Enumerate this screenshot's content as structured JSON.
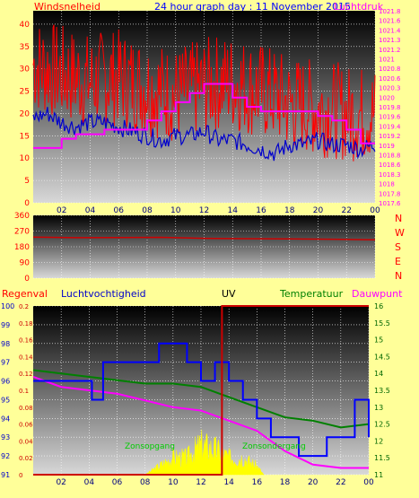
{
  "header": {
    "title": "24 hour graph day : 11 November 2015",
    "left_label": "Windsnelheid",
    "right_label": "Luchtdruk"
  },
  "direction_labels": [
    "N",
    "W",
    "S",
    "E",
    "N"
  ],
  "bottom_labels": {
    "rain": "Regenval",
    "humidity": "Luchtvochtigheid",
    "uv": "UV",
    "temperature": "Temperatuur",
    "dewpoint": "Dauwpunt"
  },
  "annotations": {
    "sunrise": "Zonsopgang",
    "sunset": "Zonsondergang"
  },
  "colors": {
    "wind": "#ff0000",
    "wind_avg": "#0000cc",
    "pressure": "#ff00ff",
    "direction": "#cc0000",
    "humidity": "#0000ff",
    "uv": "#ffff00",
    "rain": "#cc0000",
    "temperature": "#008000",
    "dewpoint": "#ff00ff",
    "title": "#0000ff",
    "background": "#ffff99"
  },
  "chart_data": [
    {
      "type": "line",
      "panel": "wind_pressure",
      "x_ticks": [
        "02",
        "04",
        "06",
        "08",
        "10",
        "12",
        "14",
        "16",
        "18",
        "20",
        "22",
        "00"
      ],
      "y_left_ticks": [
        "0",
        "5",
        "10",
        "15",
        "20",
        "25",
        "30",
        "35",
        "40"
      ],
      "y_left_range": [
        0,
        43
      ],
      "y_right_ticks": [
        "1017.6",
        "1017.8",
        "1018",
        "1018.3",
        "1018.6",
        "1018.8",
        "1019",
        "1019.2",
        "1019.4",
        "1019.6",
        "1019.8",
        "1020",
        "1020.3",
        "1020.6",
        "1020.8",
        "1021",
        "1021.2",
        "1021.3",
        "1021.4",
        "1021.6",
        "1021.8"
      ],
      "y_right_range": [
        1017.6,
        1021.8
      ],
      "series": [
        {
          "name": "wind_gust",
          "axis": "left",
          "color": "#ff0000",
          "x": [
            0,
            1,
            2,
            3,
            4,
            5,
            6,
            7,
            8,
            9,
            10,
            11,
            12,
            13,
            14,
            15,
            16,
            17,
            18,
            19,
            20,
            21,
            22,
            23,
            24
          ],
          "values": [
            31,
            30,
            29,
            28,
            27,
            28,
            28,
            27,
            26,
            25,
            24,
            25,
            26,
            27,
            27,
            26,
            25,
            24,
            22,
            22,
            21,
            21,
            20,
            20,
            20
          ]
        },
        {
          "name": "wind_avg",
          "axis": "left",
          "color": "#0000cc",
          "x": [
            0,
            1,
            2,
            3,
            4,
            5,
            6,
            7,
            8,
            9,
            10,
            11,
            12,
            13,
            14,
            15,
            16,
            17,
            18,
            19,
            20,
            21,
            22,
            23,
            24
          ],
          "values": [
            19,
            20,
            18,
            17,
            18,
            18,
            17,
            16,
            15,
            14,
            15,
            15,
            16,
            14,
            14,
            13,
            12,
            11,
            13,
            13,
            14,
            13,
            13,
            12,
            13
          ]
        },
        {
          "name": "pressure",
          "axis": "right",
          "color": "#ff00ff",
          "x": [
            0,
            1,
            2,
            3,
            4,
            5,
            6,
            7,
            8,
            9,
            10,
            11,
            12,
            13,
            14,
            15,
            16,
            17,
            18,
            19,
            20,
            21,
            22,
            23,
            24
          ],
          "values": [
            1018.8,
            1018.8,
            1019.0,
            1019.1,
            1019.1,
            1019.2,
            1019.2,
            1019.2,
            1019.4,
            1019.6,
            1019.8,
            1020.0,
            1020.2,
            1020.2,
            1019.9,
            1019.7,
            1019.6,
            1019.6,
            1019.6,
            1019.6,
            1019.5,
            1019.4,
            1019.2,
            1018.9,
            1018.9
          ]
        }
      ]
    },
    {
      "type": "line",
      "panel": "direction",
      "x_ticks": [
        "02",
        "04",
        "06",
        "08",
        "10",
        "12",
        "14",
        "16",
        "18",
        "20",
        "22",
        "00"
      ],
      "y_ticks": [
        "0",
        "90",
        "180",
        "270",
        "360"
      ],
      "y_range": [
        0,
        360
      ],
      "series": [
        {
          "name": "wind_direction",
          "color": "#cc0000",
          "x": [
            0,
            3,
            6,
            9,
            12,
            15,
            18,
            21,
            24
          ],
          "values": [
            235,
            232,
            233,
            234,
            228,
            226,
            225,
            223,
            220
          ]
        }
      ]
    },
    {
      "type": "line",
      "panel": "humidity_rain_uv_temp",
      "x_ticks": [
        "02",
        "04",
        "06",
        "08",
        "10",
        "12",
        "14",
        "16",
        "18",
        "20",
        "22",
        "00"
      ],
      "y_humidity_ticks": [
        "91",
        "92",
        "93",
        "94",
        "95",
        "96",
        "97",
        "98",
        "99",
        "100"
      ],
      "y_humidity_range": [
        91,
        100
      ],
      "y_rain_ticks": [
        "0",
        "0.02",
        "0.04",
        "0.06",
        "0.08",
        "0.1",
        "0.12",
        "0.14",
        "0.16",
        "0.18",
        "0.2"
      ],
      "y_rain_range": [
        0,
        0.2
      ],
      "y_temp_ticks": [
        "11",
        "11.5",
        "12",
        "12.5",
        "13",
        "13.5",
        "14",
        "14.5",
        "15",
        "15.5",
        "16"
      ],
      "y_temp_range": [
        11,
        16
      ],
      "series": [
        {
          "name": "humidity",
          "color": "#0000ff",
          "x": [
            0,
            4,
            4.2,
            5,
            6,
            7,
            8,
            9,
            10,
            11,
            12,
            13,
            14,
            15,
            16,
            17,
            18,
            19,
            20,
            21,
            22,
            23,
            24
          ],
          "values": [
            96,
            96,
            95,
            97,
            97,
            97,
            97,
            98,
            98,
            97,
            96,
            97,
            96,
            95,
            94,
            93,
            93,
            92,
            92,
            93,
            93,
            95,
            93
          ]
        },
        {
          "name": "rain",
          "color": "#cc0000",
          "x": [
            0,
            13.5,
            13.5,
            24
          ],
          "values": [
            0,
            0,
            0.2,
            0.2
          ]
        },
        {
          "name": "uv",
          "color": "#ffff00",
          "x": [
            8,
            9,
            10,
            11,
            12,
            13,
            14,
            15,
            16,
            16.5
          ],
          "values": [
            0,
            0.01,
            0.02,
            0.02,
            0.035,
            0.03,
            0.02,
            0.02,
            0.01,
            0
          ]
        },
        {
          "name": "temperature",
          "color": "#008000",
          "x": [
            0,
            2,
            4,
            6,
            8,
            10,
            12,
            14,
            16,
            18,
            20,
            22,
            24
          ],
          "values": [
            14.1,
            14.0,
            13.9,
            13.8,
            13.7,
            13.7,
            13.6,
            13.3,
            13.0,
            12.7,
            12.6,
            12.4,
            12.5
          ]
        },
        {
          "name": "dewpoint",
          "color": "#ff00ff",
          "x": [
            0,
            2,
            4,
            6,
            8,
            10,
            12,
            14,
            16,
            18,
            20,
            22,
            24
          ],
          "values": [
            13.9,
            13.6,
            13.5,
            13.4,
            13.2,
            13.0,
            12.9,
            12.6,
            12.3,
            11.7,
            11.3,
            11.2,
            11.2
          ]
        }
      ]
    }
  ]
}
